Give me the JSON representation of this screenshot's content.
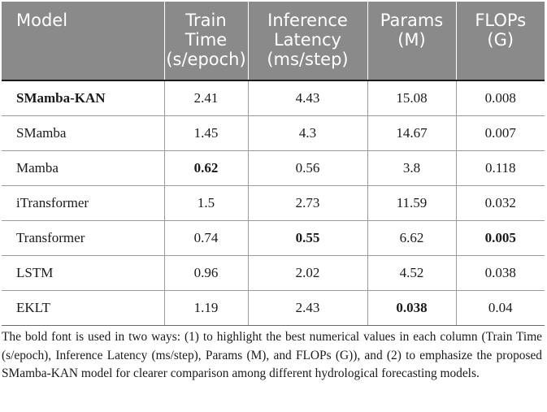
{
  "table": {
    "headers": {
      "model": "Model",
      "train_time": [
        "Train",
        "Time",
        "(s/epoch)"
      ],
      "inference_latency": [
        "Inference",
        "Latency",
        "(ms/step)"
      ],
      "params": [
        "Params",
        "(M)"
      ],
      "flops": [
        "FLOPs",
        "(G)"
      ]
    },
    "rows": [
      {
        "model": "SMamba-KAN",
        "train_time": "2.41",
        "inference_latency": "4.43",
        "params": "15.08",
        "flops": "0.008"
      },
      {
        "model": "SMamba",
        "train_time": "1.45",
        "inference_latency": "4.3",
        "params": "14.67",
        "flops": "0.007"
      },
      {
        "model": "Mamba",
        "train_time": "0.62",
        "inference_latency": "0.56",
        "params": "3.8",
        "flops": "0.118"
      },
      {
        "model": "iTransformer",
        "train_time": "1.5",
        "inference_latency": "2.73",
        "params": "11.59",
        "flops": "0.032"
      },
      {
        "model": "Transformer",
        "train_time": "0.74",
        "inference_latency": "0.55",
        "params": "6.62",
        "flops": "0.005"
      },
      {
        "model": "LSTM",
        "train_time": "0.96",
        "inference_latency": "2.02",
        "params": "4.52",
        "flops": "0.038"
      },
      {
        "model": "EKLT",
        "train_time": "1.19",
        "inference_latency": "2.43",
        "params": "0.038",
        "flops": "0.04"
      }
    ]
  },
  "footnote": "The bold font is used in two ways: (1) to highlight the best numerical values in each column (Train Time (s/epoch), Inference Latency (ms/step), Params (M), and FLOPs (G)), and (2) to emphasize the proposed SMamba-KAN model for clearer comparison among different hydrological forecasting models."
}
